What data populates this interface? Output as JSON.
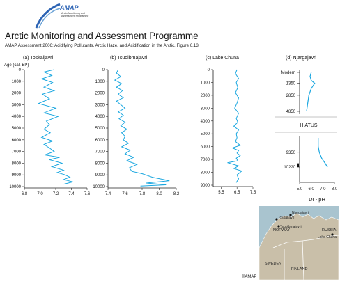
{
  "header": {
    "title": "Arctic Monitoring and Assessment Programme",
    "subtitle": "AMAP Assessment 2006: Acidifying Pollutants, Arctic Haze, and Acidification in the Arctic, Figure 6.13",
    "logo_text": "AMAP",
    "logo_subtext": "Arctic Monitoring and Assessment Programme"
  },
  "colors": {
    "series": "#1aa7e0",
    "axis": "#222222",
    "map_land": "#c9bfa9",
    "map_sea": "#a9c4cf"
  },
  "chart_data": [
    {
      "type": "line",
      "title": "(a) Toskaijavri",
      "ylabel": "Age (cal. BP)",
      "xlim": [
        6.8,
        7.6
      ],
      "ylim": [
        0,
        10000
      ],
      "xticks": [
        "6.8",
        "7.0",
        "7.2",
        "7.4",
        "7.6"
      ],
      "yticks": [
        "0",
        "1000",
        "2000",
        "3000",
        "4000",
        "5000",
        "6000",
        "7000",
        "8000",
        "9000",
        "10000"
      ],
      "x": [
        7.18,
        7.05,
        7.15,
        7.02,
        7.16,
        7.05,
        7.18,
        7.03,
        7.12,
        6.98,
        7.2,
        7.05,
        7.23,
        7.08,
        7.12,
        7.05,
        7.13,
        7.02,
        7.16,
        7.05,
        7.12,
        7.18,
        7.06,
        7.25,
        7.12,
        7.28,
        7.15,
        7.3,
        7.22,
        7.32,
        7.38,
        7.3,
        7.42,
        7.3
      ],
      "y": [
        0,
        200,
        500,
        800,
        1100,
        1500,
        1800,
        2100,
        2500,
        2900,
        3300,
        3700,
        4000,
        4400,
        4700,
        5100,
        5400,
        5800,
        6100,
        6400,
        6700,
        7000,
        7300,
        7500,
        7700,
        8000,
        8300,
        8600,
        8800,
        9000,
        9200,
        9400,
        9600,
        9800
      ]
    },
    {
      "type": "line",
      "title": "(b) Tsuolbmajavri",
      "xlim": [
        7.4,
        8.2
      ],
      "ylim": [
        0,
        10000
      ],
      "xticks": [
        "7.4",
        "7.6",
        "7.8",
        "8.0",
        "8.2"
      ],
      "yticks": [
        "0",
        "1000",
        "2000",
        "3000",
        "4000",
        "5000",
        "6000",
        "7000",
        "8000",
        "9000",
        "10000"
      ],
      "x": [
        7.52,
        7.5,
        7.55,
        7.48,
        7.56,
        7.5,
        7.57,
        7.52,
        7.58,
        7.5,
        7.55,
        7.6,
        7.52,
        7.58,
        7.53,
        7.6,
        7.55,
        7.62,
        7.56,
        7.6,
        7.58,
        7.64,
        7.56,
        7.66,
        7.6,
        7.7,
        7.62,
        7.74,
        7.65,
        7.68,
        7.8,
        7.92,
        8.12,
        7.85,
        8.08,
        7.78
      ],
      "y": [
        0,
        300,
        600,
        900,
        1200,
        1500,
        1800,
        2100,
        2400,
        2700,
        3000,
        3300,
        3600,
        3900,
        4200,
        4500,
        4800,
        5100,
        5400,
        5700,
        6000,
        6300,
        6600,
        6900,
        7200,
        7500,
        7800,
        8100,
        8400,
        8700,
        8900,
        9200,
        9500,
        9700,
        9850,
        9950
      ]
    },
    {
      "type": "line",
      "title": "(c) Lake Chuna",
      "xlim": [
        5.0,
        7.5
      ],
      "ylim": [
        0,
        9000
      ],
      "xticks": [
        "5.5",
        "6.5",
        "7.5"
      ],
      "yticks": [
        "0",
        "1000",
        "2000",
        "3000",
        "4000",
        "5000",
        "6000",
        "7000",
        "8000",
        "9000"
      ],
      "x": [
        6.5,
        6.4,
        6.6,
        6.45,
        6.55,
        6.4,
        6.6,
        6.5,
        6.35,
        6.6,
        6.45,
        6.55,
        6.3,
        6.6,
        6.45,
        6.5,
        6.4,
        6.7,
        6.2,
        6.6,
        6.5,
        6.7,
        6.45,
        6.55,
        5.9,
        6.6,
        6.3,
        6.8,
        6.5,
        6.6,
        6.45
      ],
      "y": [
        0,
        300,
        700,
        1000,
        1400,
        1800,
        2200,
        2600,
        3000,
        3400,
        3800,
        4100,
        4400,
        4700,
        5000,
        5300,
        5600,
        5900,
        6100,
        6300,
        6500,
        6700,
        6900,
        7100,
        7250,
        7500,
        7700,
        7900,
        8200,
        8500,
        8800
      ]
    },
    {
      "type": "line",
      "title": "(d) Njargajavri",
      "xlabel": "DI - pH",
      "xlim": [
        5.0,
        8.0
      ],
      "xticks": [
        "5.0",
        "6.0",
        "7.0",
        "8.0"
      ],
      "yticks": [
        "Modern",
        "1350",
        "2850",
        "4850",
        "9350",
        "10220"
      ],
      "annotation": "HIATUS",
      "upper_segment": {
        "x": [
          6.0,
          5.9,
          6.0,
          6.3,
          6.0,
          5.8,
          5.7,
          5.6
        ],
        "y": [
          0,
          500,
          1000,
          1350,
          2000,
          2850,
          3800,
          4850
        ]
      },
      "lower_segment": {
        "x": [
          6.6,
          6.6,
          6.7,
          6.9,
          7.2,
          7.4
        ],
        "y": [
          8500,
          9000,
          9350,
          9700,
          10000,
          10220
        ]
      }
    }
  ],
  "map": {
    "labels": [
      "NORWAY",
      "Njargajavri",
      "Toskaijavri",
      "Tsuolbmajavri",
      "RUSSIA",
      "Lake Chuna",
      "SWEDEN",
      "FINLAND"
    ]
  },
  "footer": {
    "copyright": "©AMAP"
  }
}
